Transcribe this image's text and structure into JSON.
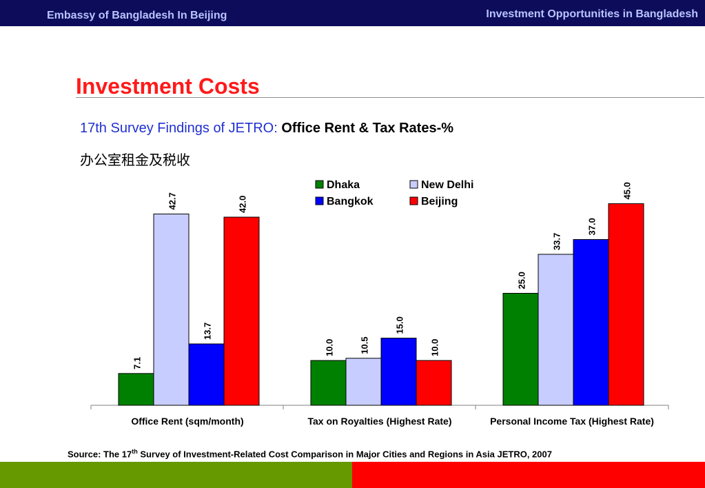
{
  "header": {
    "left_text": "Embassy of Bangladesh In Beijing",
    "right_text": "Investment Opportunities in Bangladesh"
  },
  "title": "Investment Costs",
  "subtitle": {
    "prefix": "17th Survey Findings of JETRO: ",
    "emphasis": "Office Rent & Tax Rates-%",
    "chinese": "办公室租金及税收"
  },
  "source": {
    "before_sup": "Source: The 17",
    "sup": "th",
    "after_sup": " Survey of Investment-Related Cost Comparison in Major Cities and Regions in Asia JETRO, 2007"
  },
  "colors": {
    "header_bg": "#0c0c5a",
    "header_text": "#b9c3ff",
    "title": "#ff1a1a",
    "subtitle_blue": "#1f2fd0",
    "footer_green": "#669900",
    "footer_red": "#ff0000"
  },
  "chart_data": {
    "type": "bar",
    "categories": [
      "Office Rent (sqm/month)",
      "Tax on Royalties (Highest Rate)",
      "Personal Income Tax (Highest Rate)"
    ],
    "series": [
      {
        "name": "Dhaka",
        "color": "#008000",
        "values": [
          7.1,
          10.0,
          25.0
        ],
        "labels": [
          "7.1",
          "10.0",
          "25.0"
        ]
      },
      {
        "name": "New Delhi",
        "color": "#c8cdff",
        "values": [
          42.7,
          10.5,
          33.7
        ],
        "labels": [
          "42.7",
          "10.5",
          "33.7"
        ]
      },
      {
        "name": "Bangkok",
        "color": "#0000ff",
        "values": [
          13.7,
          15.0,
          37.0
        ],
        "labels": [
          "13.7",
          "15.0",
          "37.0"
        ]
      },
      {
        "name": "Beijing",
        "color": "#ff0000",
        "values": [
          42.0,
          10.0,
          45.0
        ],
        "labels": [
          "42.0",
          "10.0",
          "45.0"
        ]
      }
    ],
    "legend_position": "top-center",
    "ylim": [
      0,
      50
    ],
    "grid": false,
    "data_labels": true
  }
}
